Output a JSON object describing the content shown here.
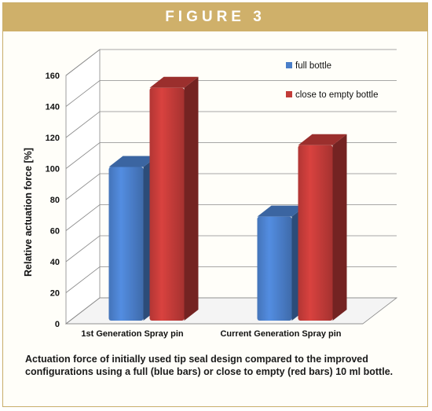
{
  "figure": {
    "title": "FIGURE 3",
    "caption": "Actuation force of initially used tip seal design compared to the improved configurations using a full (blue bars) or close to empty (red bars) 10 ml bottle."
  },
  "chart_data": {
    "type": "bar",
    "categories": [
      "1st Generation Spray pin",
      "Current Generation Spray pin"
    ],
    "series": [
      {
        "name": "full bottle",
        "values": [
          98,
          66
        ],
        "color": "#4a7ec9"
      },
      {
        "name": "close to empty bottle",
        "values": [
          149,
          112
        ],
        "color": "#c23b38"
      }
    ],
    "ylabel": "Relative actuation force [%]",
    "xlabel": "",
    "ylim": [
      0,
      160
    ],
    "yticks": [
      0,
      20,
      40,
      60,
      80,
      100,
      120,
      140,
      160
    ],
    "grid": true,
    "legend": "top-right",
    "style": "3d"
  }
}
